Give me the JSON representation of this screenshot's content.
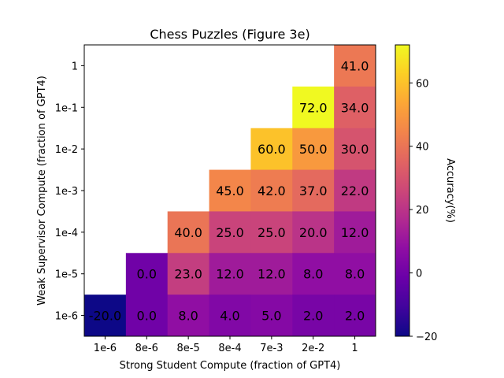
{
  "chart_data": {
    "type": "heatmap",
    "title": "Chess Puzzles (Figure 3e)",
    "xlabel": "Strong Student Compute (fraction of GPT4)",
    "ylabel": "Weak Supervisor Compute (fraction of GPT4)",
    "x_categories": [
      "1e-6",
      "8e-6",
      "8e-5",
      "8e-4",
      "7e-3",
      "2e-2",
      "1"
    ],
    "y_categories": [
      "1",
      "1e-1",
      "1e-2",
      "1e-3",
      "1e-4",
      "1e-5",
      "1e-6"
    ],
    "values": [
      [
        null,
        null,
        null,
        null,
        null,
        null,
        41.0
      ],
      [
        null,
        null,
        null,
        null,
        null,
        72.0,
        34.0
      ],
      [
        null,
        null,
        null,
        null,
        60.0,
        50.0,
        30.0
      ],
      [
        null,
        null,
        null,
        45.0,
        42.0,
        37.0,
        22.0
      ],
      [
        null,
        null,
        40.0,
        25.0,
        25.0,
        20.0,
        12.0
      ],
      [
        null,
        0.0,
        23.0,
        12.0,
        12.0,
        8.0,
        8.0
      ],
      [
        -20.0,
        0.0,
        8.0,
        4.0,
        5.0,
        2.0,
        2.0
      ]
    ],
    "colorbar": {
      "label": "Accuracy(%)",
      "range": [
        -20,
        72
      ],
      "ticks": [
        -20,
        0,
        20,
        40,
        60
      ],
      "colormap": "plasma"
    }
  }
}
